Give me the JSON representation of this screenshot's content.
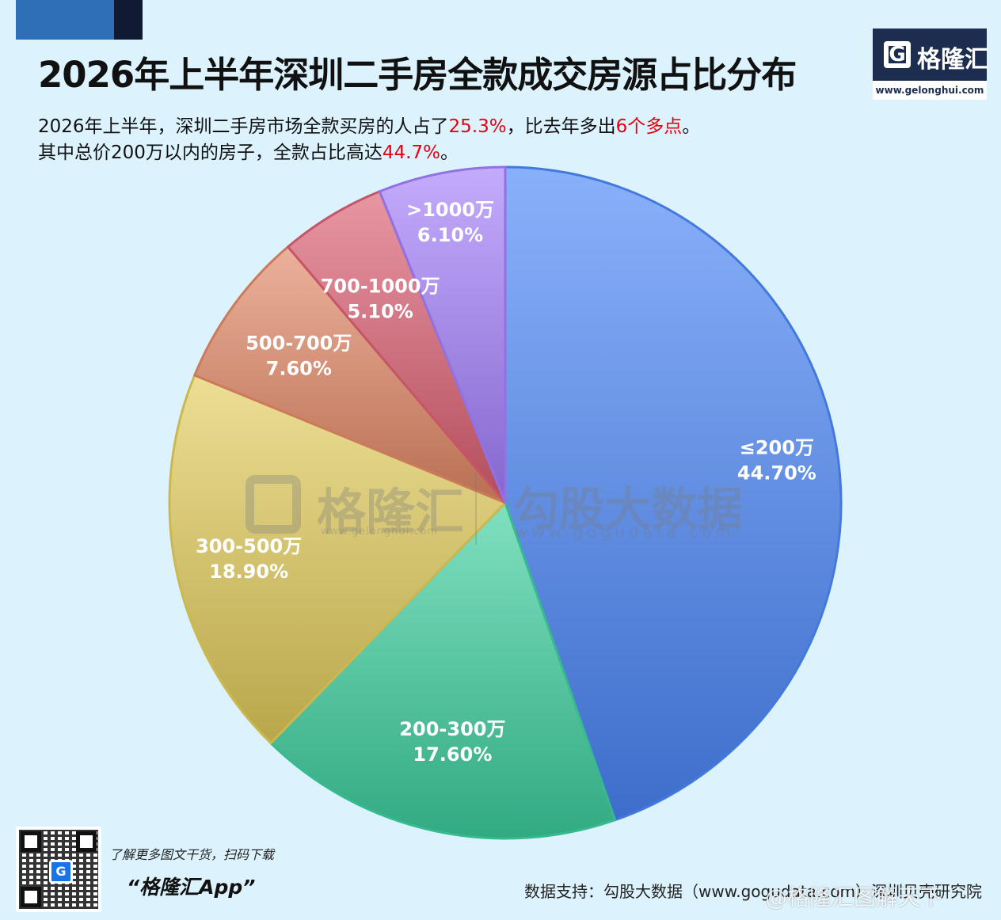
{
  "title": "2026年上半年深圳二手房全款成交房源占比分布",
  "logo": {
    "letter": "G",
    "name": "格隆汇",
    "url": "www.gelonghui.com"
  },
  "description": {
    "line1_prefix": "2026年上半年，深圳二手房市场全款买房的人占了",
    "line1_value": "25.3%",
    "line1_mid": "，比去年多出",
    "line1_value2": "6个多点",
    "line1_suffix": "。",
    "line2_prefix": "其中总价200万以内的房子，全款占比高达",
    "line2_value": "44.7%",
    "line2_suffix": "。"
  },
  "watermark": {
    "name1": "格隆汇",
    "url1": "www.gelonghui.com",
    "name2": "勾股大数据",
    "url2": "www.gogudata.com"
  },
  "footer": {
    "promo": "了解更多图文干货，扫码下载",
    "app": "“格隆汇App”",
    "source": "数据支持：勾股大数据（www.gogudata.com）深圳贝壳研究院",
    "weibo": "@格隆汇图解天下"
  },
  "chart_data": {
    "type": "pie",
    "categories": [
      "≤200万",
      "200-300万",
      "300-500万",
      "500-700万",
      "700-1000万",
      ">1000万"
    ],
    "values": [
      44.7,
      17.6,
      18.9,
      7.6,
      5.1,
      6.1
    ],
    "labels": [
      "44.70%",
      "17.60%",
      "18.90%",
      "7.60%",
      "5.10%",
      "6.10%"
    ],
    "colors": [
      "#4a86f8",
      "#3ccf9e",
      "#e2cc5a",
      "#e18765",
      "#dc5e72",
      "#a27dfb"
    ]
  }
}
